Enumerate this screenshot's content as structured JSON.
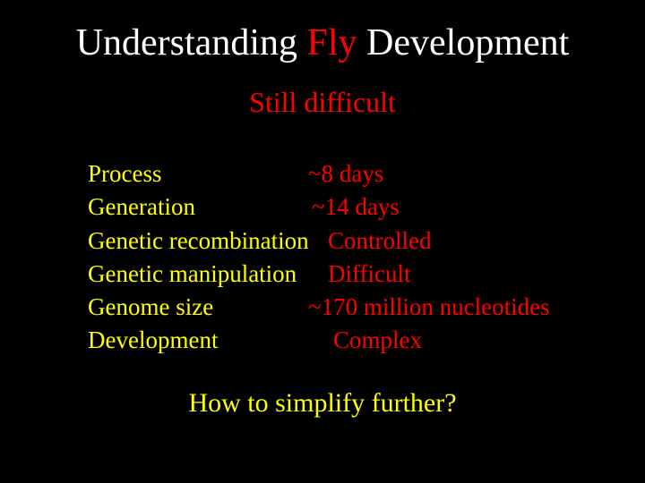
{
  "title": {
    "pre": "Understanding ",
    "accent": "Fly",
    "post": " Development",
    "title_color": "#ffffff",
    "accent_color": "#ff0000",
    "fontsize": 42
  },
  "subtitle": {
    "text": "Still difficult",
    "color": "#ff0000",
    "fontsize": 32
  },
  "rows": [
    {
      "label": "Process",
      "value": "~8 days"
    },
    {
      "label": "Generation",
      "value": "~14 days"
    },
    {
      "label": "Genetic recombination",
      "value": "Controlled"
    },
    {
      "label": "Genetic manipulation",
      "value": "Difficult"
    },
    {
      "label": "Genome size",
      "value": "~170 million nucleotides"
    },
    {
      "label": "Development",
      "value": "Complex"
    }
  ],
  "row_style": {
    "label_color": "#ffff00",
    "value_color": "#ff0000",
    "fontsize": 27
  },
  "closing": {
    "text": "How to simplify further?",
    "color": "#ffff00",
    "fontsize": 30
  },
  "background_color": "#000000"
}
